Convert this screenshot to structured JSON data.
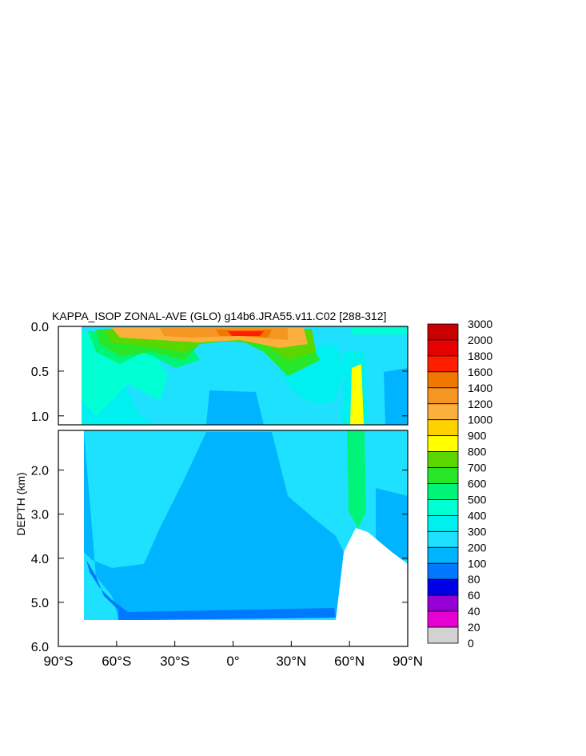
{
  "chart_data": {
    "type": "heatmap",
    "title": "KAPPA_ISOP ZONAL-AVE (GLO) g14b6.JRA55.v11.C02 [288-312]",
    "ylabel": "DEPTH (km)",
    "x_ticks": [
      "90°S",
      "60°S",
      "30°S",
      "0°",
      "30°N",
      "60°N",
      "90°N"
    ],
    "x_tick_values": [
      -90,
      -60,
      -30,
      0,
      30,
      60,
      90
    ],
    "xlim": [
      -90,
      90
    ],
    "y_ticks_upper": [
      "0.0",
      "0.5",
      "1.0"
    ],
    "y_tick_values_upper": [
      0.0,
      0.5,
      1.0
    ],
    "ylim_upper": [
      0.0,
      1.1
    ],
    "y_ticks_lower": [
      "2.0",
      "3.0",
      "4.0",
      "5.0",
      "6.0"
    ],
    "y_tick_values_lower": [
      2.0,
      3.0,
      4.0,
      5.0,
      6.0
    ],
    "ylim_lower": [
      1.1,
      6.0
    ],
    "colorbar": {
      "labels": [
        "3000",
        "2000",
        "1800",
        "1600",
        "1400",
        "1200",
        "1000",
        "900",
        "800",
        "700",
        "600",
        "500",
        "400",
        "300",
        "200",
        "100",
        "80",
        "60",
        "40",
        "20",
        "0"
      ],
      "colors": [
        "#c80000",
        "#e60000",
        "#ff1e00",
        "#f07800",
        "#f59623",
        "#fbaf3c",
        "#fdd200",
        "#ffff00",
        "#5ad700",
        "#28e628",
        "#00f578",
        "#00ffd2",
        "#00f0f0",
        "#1ee1ff",
        "#00b4ff",
        "#0078ff",
        "#0000e6",
        "#9600d7",
        "#e600d2",
        "#d2d2d2",
        "#787878"
      ]
    },
    "grid": false,
    "legend_placement": "right"
  }
}
